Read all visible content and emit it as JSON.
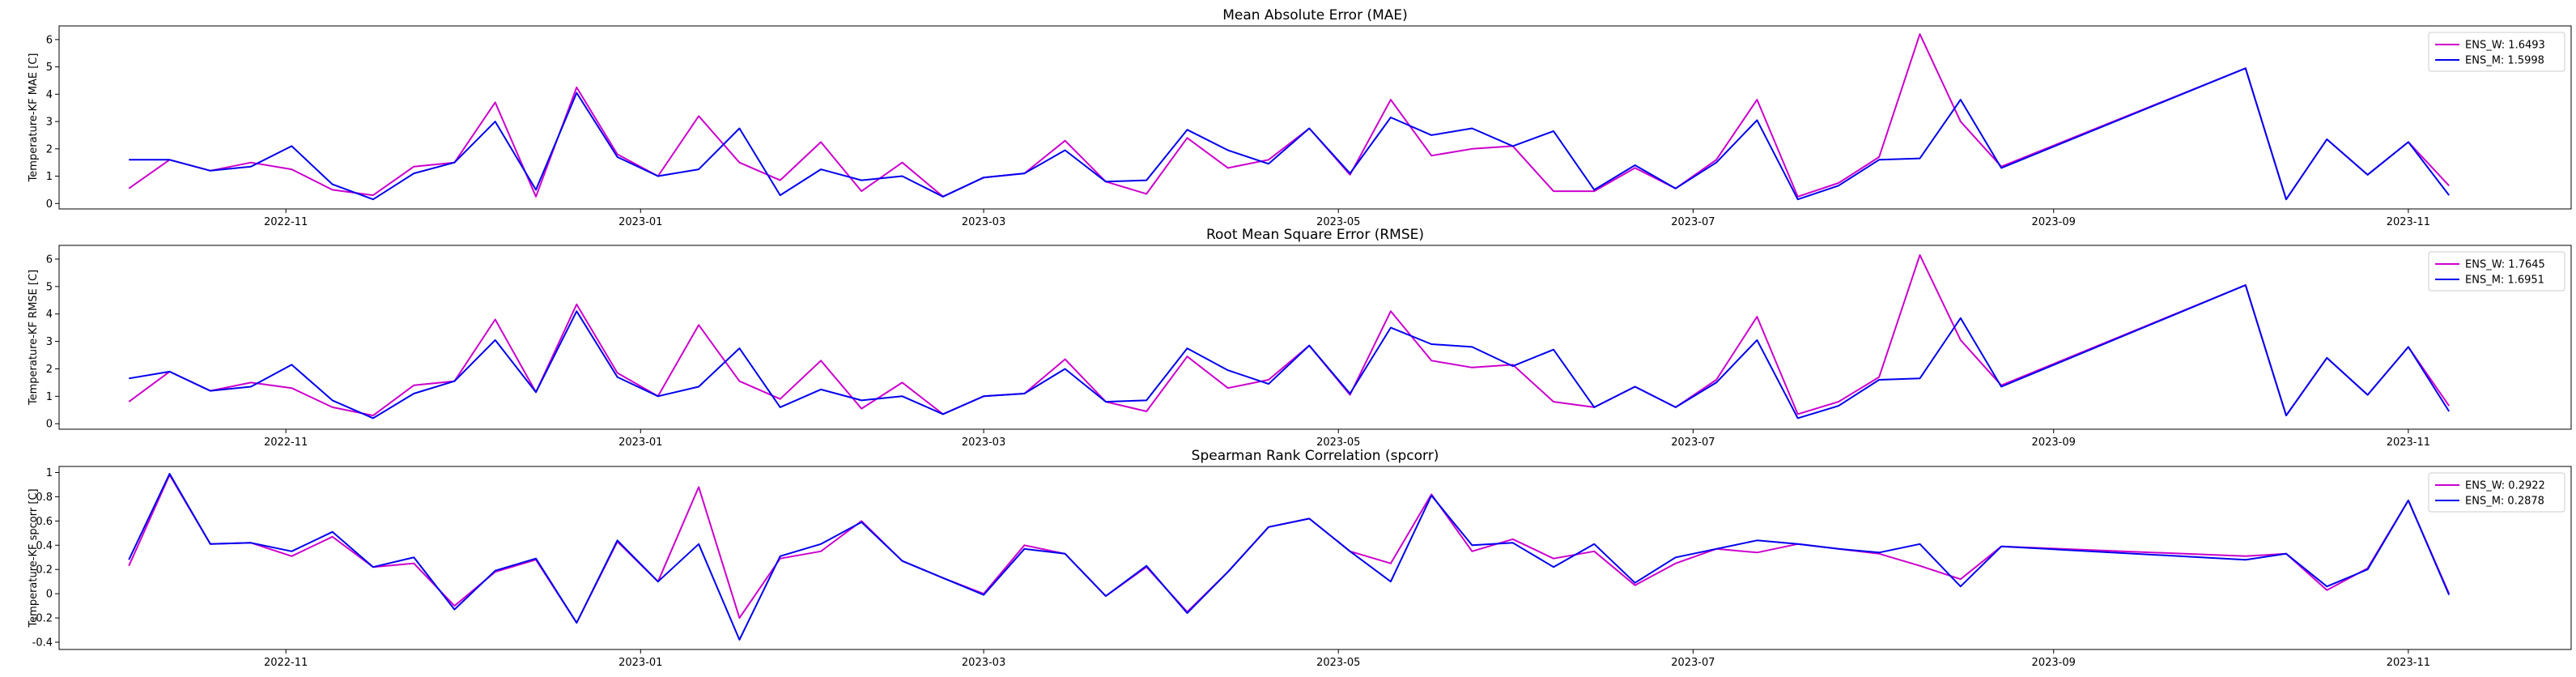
{
  "chart_data": [
    {
      "type": "line",
      "title": "Mean Absolute Error (MAE)",
      "ylabel": "Temperature-KF MAE [C]",
      "xlabel": "",
      "ylim": [
        -0.2,
        6.5
      ],
      "yticks": [
        0,
        1,
        2,
        3,
        4,
        5,
        6
      ],
      "xticks": [
        "2022-11",
        "2023-01",
        "2023-03",
        "2023-05",
        "2023-07",
        "2023-09",
        "2023-11"
      ],
      "legend_position": "top-right",
      "grid": false,
      "x": [
        "2022-10-05",
        "2022-10-12",
        "2022-10-19",
        "2022-10-26",
        "2022-11-02",
        "2022-11-09",
        "2022-11-16",
        "2022-11-23",
        "2022-11-30",
        "2022-12-07",
        "2022-12-14",
        "2022-12-21",
        "2022-12-28",
        "2023-01-04",
        "2023-01-11",
        "2023-01-18",
        "2023-01-25",
        "2023-02-01",
        "2023-02-08",
        "2023-02-15",
        "2023-02-22",
        "2023-03-01",
        "2023-03-08",
        "2023-03-15",
        "2023-03-22",
        "2023-03-29",
        "2023-04-05",
        "2023-04-12",
        "2023-04-19",
        "2023-04-26",
        "2023-05-03",
        "2023-05-10",
        "2023-05-17",
        "2023-05-24",
        "2023-05-31",
        "2023-06-07",
        "2023-06-14",
        "2023-06-21",
        "2023-06-28",
        "2023-07-05",
        "2023-07-12",
        "2023-07-19",
        "2023-07-26",
        "2023-08-02",
        "2023-08-09",
        "2023-08-16",
        "2023-08-23",
        "2023-10-04",
        "2023-10-11",
        "2023-10-18",
        "2023-10-25",
        "2023-11-01",
        "2023-11-08"
      ],
      "series": [
        {
          "name": "ENS_W: 1.6493",
          "color": "#cc00cc",
          "values": [
            0.55,
            1.6,
            1.2,
            1.5,
            1.25,
            0.5,
            0.3,
            1.35,
            1.5,
            3.7,
            0.25,
            4.25,
            1.8,
            1.0,
            3.2,
            1.5,
            0.85,
            2.25,
            0.45,
            1.5,
            0.25,
            0.95,
            1.1,
            2.3,
            0.8,
            0.35,
            2.4,
            1.3,
            1.6,
            2.75,
            1.05,
            3.8,
            1.75,
            2.0,
            2.1,
            0.45,
            0.45,
            1.3,
            0.55,
            1.6,
            3.8,
            0.25,
            0.75,
            1.7,
            6.2,
            3.0,
            1.35,
            4.95,
            0.15,
            2.35,
            1.05,
            2.25,
            0.65
          ]
        },
        {
          "name": "ENS_M: 1.5998",
          "color": "#0000ee",
          "values": [
            1.6,
            1.6,
            1.2,
            1.35,
            2.1,
            0.7,
            0.15,
            1.1,
            1.5,
            3.0,
            0.5,
            4.05,
            1.7,
            1.0,
            1.25,
            2.75,
            0.3,
            1.25,
            0.85,
            1.0,
            0.25,
            0.95,
            1.1,
            1.95,
            0.8,
            0.85,
            2.7,
            1.95,
            1.45,
            2.75,
            1.1,
            3.15,
            2.5,
            2.75,
            2.1,
            2.65,
            0.5,
            1.4,
            0.55,
            1.5,
            3.05,
            0.15,
            0.65,
            1.6,
            1.65,
            3.8,
            1.3,
            4.95,
            0.15,
            2.35,
            1.05,
            2.25,
            0.3
          ]
        }
      ]
    },
    {
      "type": "line",
      "title": "Root Mean Square Error (RMSE)",
      "ylabel": "Temperature-KF RMSE [C]",
      "xlabel": "",
      "ylim": [
        -0.2,
        6.5
      ],
      "yticks": [
        0,
        1,
        2,
        3,
        4,
        5,
        6
      ],
      "xticks": [
        "2022-11",
        "2023-01",
        "2023-03",
        "2023-05",
        "2023-07",
        "2023-09",
        "2023-11"
      ],
      "legend_position": "top-right",
      "grid": false,
      "x": [
        "2022-10-05",
        "2022-10-12",
        "2022-10-19",
        "2022-10-26",
        "2022-11-02",
        "2022-11-09",
        "2022-11-16",
        "2022-11-23",
        "2022-11-30",
        "2022-12-07",
        "2022-12-14",
        "2022-12-21",
        "2022-12-28",
        "2023-01-04",
        "2023-01-11",
        "2023-01-18",
        "2023-01-25",
        "2023-02-01",
        "2023-02-08",
        "2023-02-15",
        "2023-02-22",
        "2023-03-01",
        "2023-03-08",
        "2023-03-15",
        "2023-03-22",
        "2023-03-29",
        "2023-04-05",
        "2023-04-12",
        "2023-04-19",
        "2023-04-26",
        "2023-05-03",
        "2023-05-10",
        "2023-05-17",
        "2023-05-24",
        "2023-05-31",
        "2023-06-07",
        "2023-06-14",
        "2023-06-21",
        "2023-06-28",
        "2023-07-05",
        "2023-07-12",
        "2023-07-19",
        "2023-07-26",
        "2023-08-02",
        "2023-08-09",
        "2023-08-16",
        "2023-08-23",
        "2023-10-04",
        "2023-10-11",
        "2023-10-18",
        "2023-10-25",
        "2023-11-01",
        "2023-11-08"
      ],
      "series": [
        {
          "name": "ENS_W: 1.7645",
          "color": "#cc00cc",
          "values": [
            0.8,
            1.9,
            1.2,
            1.5,
            1.3,
            0.6,
            0.3,
            1.4,
            1.55,
            3.8,
            1.15,
            4.35,
            1.85,
            1.0,
            3.6,
            1.55,
            0.9,
            2.3,
            0.55,
            1.5,
            0.35,
            1.0,
            1.1,
            2.35,
            0.8,
            0.45,
            2.45,
            1.3,
            1.6,
            2.85,
            1.05,
            4.1,
            2.3,
            2.05,
            2.15,
            0.8,
            0.6,
            1.35,
            0.6,
            1.6,
            3.9,
            0.35,
            0.8,
            1.7,
            6.15,
            3.05,
            1.4,
            5.05,
            0.3,
            2.4,
            1.05,
            2.8,
            0.65
          ]
        },
        {
          "name": "ENS_M: 1.6951",
          "color": "#0000ee",
          "values": [
            1.65,
            1.9,
            1.2,
            1.35,
            2.15,
            0.85,
            0.2,
            1.1,
            1.55,
            3.05,
            1.15,
            4.1,
            1.7,
            1.0,
            1.35,
            2.75,
            0.6,
            1.25,
            0.85,
            1.0,
            0.35,
            1.0,
            1.1,
            2.0,
            0.8,
            0.85,
            2.75,
            1.95,
            1.45,
            2.85,
            1.1,
            3.5,
            2.9,
            2.8,
            2.1,
            2.7,
            0.6,
            1.35,
            0.6,
            1.5,
            3.05,
            0.2,
            0.65,
            1.6,
            1.65,
            3.85,
            1.35,
            5.05,
            0.3,
            2.4,
            1.05,
            2.8,
            0.45
          ]
        }
      ]
    },
    {
      "type": "line",
      "title": "Spearman Rank Correlation (spcorr)",
      "ylabel": "Temperature-KF spcorr [C]",
      "xlabel": "",
      "ylim": [
        -0.46,
        1.05
      ],
      "yticks": [
        -0.4,
        -0.2,
        0.0,
        0.2,
        0.4,
        0.6,
        0.8,
        1.0
      ],
      "xticks": [
        "2022-11",
        "2023-01",
        "2023-03",
        "2023-05",
        "2023-07",
        "2023-09",
        "2023-11"
      ],
      "legend_position": "top-right",
      "grid": false,
      "x": [
        "2022-10-05",
        "2022-10-12",
        "2022-10-19",
        "2022-10-26",
        "2022-11-02",
        "2022-11-09",
        "2022-11-16",
        "2022-11-23",
        "2022-11-30",
        "2022-12-07",
        "2022-12-14",
        "2022-12-21",
        "2022-12-28",
        "2023-01-04",
        "2023-01-11",
        "2023-01-18",
        "2023-01-25",
        "2023-02-01",
        "2023-02-08",
        "2023-02-15",
        "2023-02-22",
        "2023-03-01",
        "2023-03-08",
        "2023-03-15",
        "2023-03-22",
        "2023-03-29",
        "2023-04-05",
        "2023-04-12",
        "2023-04-19",
        "2023-04-26",
        "2023-05-03",
        "2023-05-10",
        "2023-05-17",
        "2023-05-24",
        "2023-05-31",
        "2023-06-07",
        "2023-06-14",
        "2023-06-21",
        "2023-06-28",
        "2023-07-05",
        "2023-07-12",
        "2023-07-19",
        "2023-07-26",
        "2023-08-02",
        "2023-08-09",
        "2023-08-16",
        "2023-08-23",
        "2023-10-04",
        "2023-10-11",
        "2023-10-18",
        "2023-10-25",
        "2023-11-01",
        "2023-11-08"
      ],
      "series": [
        {
          "name": "ENS_W: 0.2922",
          "color": "#cc00cc",
          "values": [
            0.23,
            0.98,
            0.41,
            0.42,
            0.31,
            0.47,
            0.22,
            0.25,
            -0.1,
            0.18,
            0.28,
            -0.24,
            0.43,
            0.1,
            0.88,
            -0.2,
            0.29,
            0.35,
            0.6,
            0.27,
            0.13,
            0.0,
            0.4,
            0.33,
            -0.02,
            0.22,
            -0.15,
            0.18,
            0.55,
            0.62,
            0.35,
            0.25,
            0.82,
            0.35,
            0.45,
            0.29,
            0.35,
            0.07,
            0.25,
            0.37,
            0.34,
            0.41,
            0.37,
            0.33,
            0.23,
            0.12,
            0.39,
            0.31,
            0.33,
            0.03,
            0.21,
            0.77,
            0.0
          ]
        },
        {
          "name": "ENS_M: 0.2878",
          "color": "#0000ee",
          "values": [
            0.28,
            0.99,
            0.41,
            0.42,
            0.35,
            0.51,
            0.22,
            0.3,
            -0.13,
            0.19,
            0.29,
            -0.24,
            0.44,
            0.1,
            0.41,
            -0.38,
            0.31,
            0.41,
            0.59,
            0.27,
            0.13,
            -0.01,
            0.37,
            0.33,
            -0.02,
            0.23,
            -0.16,
            0.18,
            0.55,
            0.62,
            0.35,
            0.1,
            0.81,
            0.4,
            0.42,
            0.22,
            0.41,
            0.09,
            0.3,
            0.37,
            0.44,
            0.41,
            0.37,
            0.34,
            0.41,
            0.06,
            0.39,
            0.28,
            0.33,
            0.06,
            0.2,
            0.77,
            -0.01
          ]
        }
      ]
    }
  ]
}
